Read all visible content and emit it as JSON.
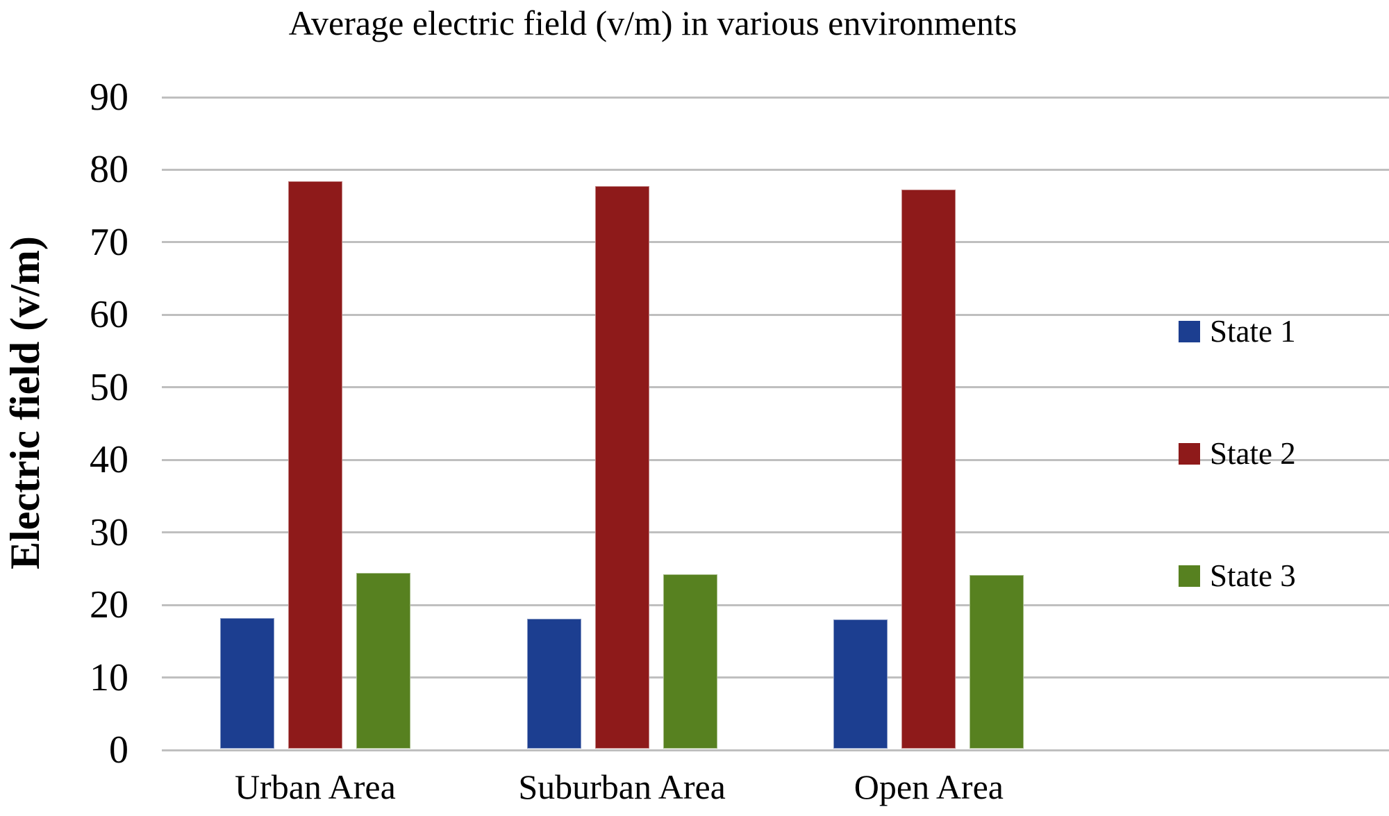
{
  "chart_data": {
    "type": "bar",
    "title": "Average electric field (v/m) in various environments",
    "xlabel": "",
    "ylabel": "Electric field (v/m)",
    "categories": [
      "Urban Area",
      "Suburban Area",
      "Open Area"
    ],
    "series": [
      {
        "name": "State 1",
        "color": "#1C3E90",
        "values": [
          18.0,
          17.9,
          17.8
        ]
      },
      {
        "name": "State 2",
        "color": "#8E1A1A",
        "values": [
          78.2,
          77.6,
          77.1
        ]
      },
      {
        "name": "State 3",
        "color": "#578120",
        "values": [
          24.2,
          24.0,
          23.9
        ]
      }
    ],
    "ylim": [
      0,
      90
    ],
    "ytick_step": 10,
    "yticks": [
      0,
      10,
      20,
      30,
      40,
      50,
      60,
      70,
      80,
      90
    ],
    "grid": "horizontal",
    "gridline_color": "#BFBFBF",
    "legend_position": "right",
    "background_color": "#FFFFFF",
    "text_color": "#000000"
  }
}
